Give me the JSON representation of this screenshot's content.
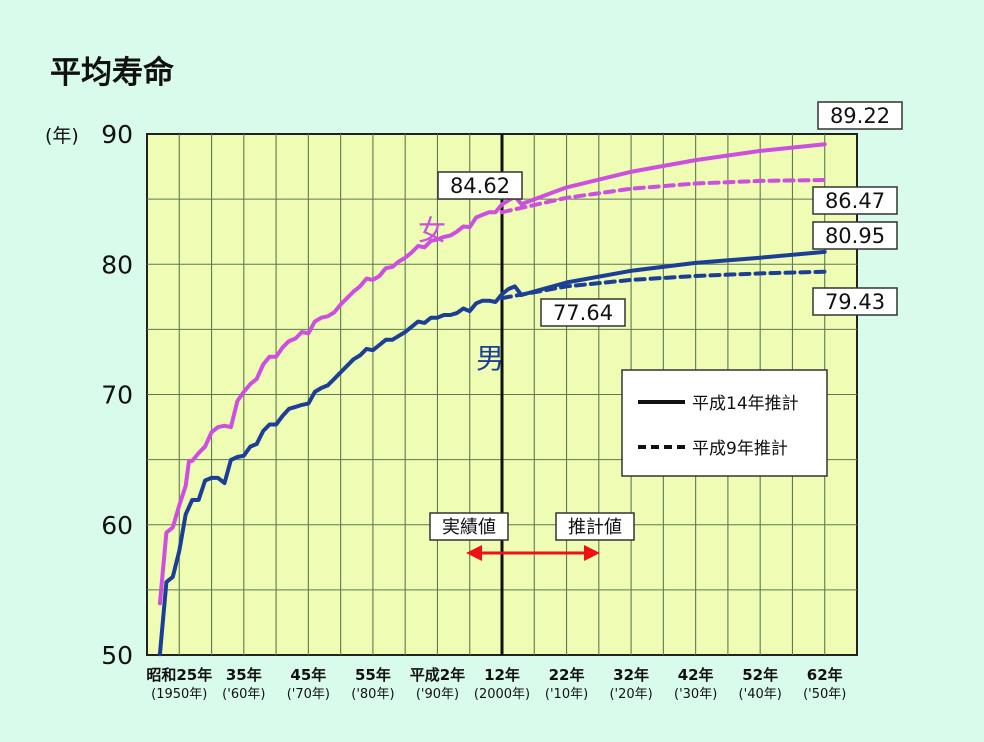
{
  "page": {
    "title": "平均寿命",
    "colors": {
      "background": "#d9fbec",
      "plot_area": "#eefcb4",
      "female": "#cc4fe0",
      "male": "#1c3f95",
      "arrow": "#ee1111"
    }
  },
  "chart_data": {
    "type": "line",
    "title": "平均寿命",
    "y_unit_label": "(年)",
    "ylim": [
      50,
      90
    ],
    "yticks": [
      50,
      60,
      70,
      80,
      90
    ],
    "xlim": [
      1945,
      2055
    ],
    "xticks": [
      {
        "x": 1950,
        "top": "昭和25年",
        "bottom": "(1950年)"
      },
      {
        "x": 1960,
        "top": "35年",
        "bottom": "('60年)"
      },
      {
        "x": 1970,
        "top": "45年",
        "bottom": "('70年)"
      },
      {
        "x": 1980,
        "top": "55年",
        "bottom": "('80年)"
      },
      {
        "x": 1990,
        "top": "平成2年",
        "bottom": "('90年)"
      },
      {
        "x": 2000,
        "top": "12年",
        "bottom": "(2000年)"
      },
      {
        "x": 2010,
        "top": "22年",
        "bottom": "('10年)"
      },
      {
        "x": 2020,
        "top": "32年",
        "bottom": "('20年)"
      },
      {
        "x": 2030,
        "top": "42年",
        "bottom": "('30年)"
      },
      {
        "x": 2040,
        "top": "52年",
        "bottom": "('40年)"
      },
      {
        "x": 2050,
        "top": "62年",
        "bottom": "('50年)"
      }
    ],
    "grid": true,
    "divider_x": 2000,
    "series": [
      {
        "name": "女",
        "kind": "actual",
        "color": "#cc4fe0",
        "points": [
          [
            1947,
            53.96
          ],
          [
            1948,
            59.4
          ],
          [
            1949,
            59.8
          ],
          [
            1950,
            61.5
          ],
          [
            1951,
            63.0
          ],
          [
            1951.5,
            64.9
          ],
          [
            1952,
            64.9
          ],
          [
            1953,
            65.5
          ],
          [
            1954,
            66.0
          ],
          [
            1955,
            67.1
          ],
          [
            1956,
            67.5
          ],
          [
            1957,
            67.6
          ],
          [
            1958,
            67.5
          ],
          [
            1959,
            69.5
          ],
          [
            1960,
            70.2
          ],
          [
            1961,
            70.8
          ],
          [
            1962,
            71.2
          ],
          [
            1963,
            72.3
          ],
          [
            1964,
            72.9
          ],
          [
            1965,
            72.9
          ],
          [
            1966,
            73.6
          ],
          [
            1967,
            74.1
          ],
          [
            1968,
            74.3
          ],
          [
            1969,
            74.8
          ],
          [
            1970,
            74.7
          ],
          [
            1971,
            75.6
          ],
          [
            1972,
            75.9
          ],
          [
            1973,
            76.0
          ],
          [
            1974,
            76.3
          ],
          [
            1975,
            76.9
          ],
          [
            1976,
            77.4
          ],
          [
            1977,
            77.9
          ],
          [
            1978,
            78.3
          ],
          [
            1979,
            78.9
          ],
          [
            1980,
            78.8
          ],
          [
            1981,
            79.1
          ],
          [
            1982,
            79.7
          ],
          [
            1983,
            79.8
          ],
          [
            1984,
            80.2
          ],
          [
            1985,
            80.5
          ],
          [
            1986,
            80.9
          ],
          [
            1987,
            81.4
          ],
          [
            1988,
            81.3
          ],
          [
            1989,
            81.8
          ],
          [
            1990,
            81.9
          ],
          [
            1991,
            82.1
          ],
          [
            1992,
            82.2
          ],
          [
            1993,
            82.5
          ],
          [
            1994,
            82.9
          ],
          [
            1995,
            82.85
          ],
          [
            1996,
            83.6
          ],
          [
            1997,
            83.8
          ],
          [
            1998,
            84.0
          ],
          [
            1999,
            83.99
          ],
          [
            2000,
            84.6
          ],
          [
            2001,
            84.9
          ],
          [
            2002,
            85.2
          ],
          [
            2003,
            84.62
          ]
        ]
      },
      {
        "name": "男",
        "kind": "actual",
        "color": "#1c3f95",
        "points": [
          [
            1947,
            50.06
          ],
          [
            1948,
            55.6
          ],
          [
            1949,
            56.0
          ],
          [
            1950,
            58.0
          ],
          [
            1951,
            60.8
          ],
          [
            1952,
            61.9
          ],
          [
            1953,
            61.9
          ],
          [
            1954,
            63.4
          ],
          [
            1955,
            63.6
          ],
          [
            1956,
            63.6
          ],
          [
            1957,
            63.2
          ],
          [
            1958,
            64.98
          ],
          [
            1959,
            65.2
          ],
          [
            1960,
            65.3
          ],
          [
            1961,
            66.0
          ],
          [
            1962,
            66.2
          ],
          [
            1963,
            67.2
          ],
          [
            1964,
            67.7
          ],
          [
            1965,
            67.7
          ],
          [
            1966,
            68.35
          ],
          [
            1967,
            68.9
          ],
          [
            1968,
            69.05
          ],
          [
            1969,
            69.2
          ],
          [
            1970,
            69.3
          ],
          [
            1971,
            70.2
          ],
          [
            1972,
            70.5
          ],
          [
            1973,
            70.7
          ],
          [
            1974,
            71.2
          ],
          [
            1975,
            71.7
          ],
          [
            1976,
            72.2
          ],
          [
            1977,
            72.7
          ],
          [
            1978,
            73.0
          ],
          [
            1979,
            73.5
          ],
          [
            1980,
            73.4
          ],
          [
            1981,
            73.8
          ],
          [
            1982,
            74.2
          ],
          [
            1983,
            74.2
          ],
          [
            1984,
            74.5
          ],
          [
            1985,
            74.8
          ],
          [
            1986,
            75.2
          ],
          [
            1987,
            75.6
          ],
          [
            1988,
            75.5
          ],
          [
            1989,
            75.9
          ],
          [
            1990,
            75.9
          ],
          [
            1991,
            76.1
          ],
          [
            1992,
            76.1
          ],
          [
            1993,
            76.25
          ],
          [
            1994,
            76.6
          ],
          [
            1995,
            76.4
          ],
          [
            1996,
            77.0
          ],
          [
            1997,
            77.2
          ],
          [
            1998,
            77.2
          ],
          [
            1999,
            77.1
          ],
          [
            2000,
            77.7
          ],
          [
            2001,
            78.1
          ],
          [
            2002,
            78.3
          ],
          [
            2003,
            77.64
          ]
        ]
      },
      {
        "name": "平成14年推計",
        "kind": "projection",
        "gender": "female",
        "style": "solid",
        "color": "#cc4fe0",
        "points": [
          [
            2003,
            84.62
          ],
          [
            2010,
            85.9
          ],
          [
            2020,
            87.1
          ],
          [
            2030,
            88.0
          ],
          [
            2040,
            88.7
          ],
          [
            2050,
            89.22
          ]
        ]
      },
      {
        "name": "平成14年推計",
        "kind": "projection",
        "gender": "male",
        "style": "solid",
        "color": "#1c3f95",
        "points": [
          [
            2003,
            77.64
          ],
          [
            2010,
            78.6
          ],
          [
            2020,
            79.5
          ],
          [
            2030,
            80.1
          ],
          [
            2040,
            80.5
          ],
          [
            2050,
            80.95
          ]
        ]
      },
      {
        "name": "平成9年推計",
        "kind": "projection",
        "gender": "female",
        "style": "dashed",
        "color": "#cc4fe0",
        "points": [
          [
            2000,
            84.0
          ],
          [
            2010,
            85.1
          ],
          [
            2020,
            85.8
          ],
          [
            2030,
            86.2
          ],
          [
            2040,
            86.4
          ],
          [
            2050,
            86.47
          ]
        ]
      },
      {
        "name": "平成9年推計",
        "kind": "projection",
        "gender": "male",
        "style": "dashed",
        "color": "#1c3f95",
        "points": [
          [
            2000,
            77.4
          ],
          [
            2010,
            78.3
          ],
          [
            2020,
            78.8
          ],
          [
            2030,
            79.1
          ],
          [
            2040,
            79.3
          ],
          [
            2050,
            79.43
          ]
        ]
      }
    ],
    "value_labels": [
      {
        "text": "89.22",
        "x": 2050,
        "y": 89.22
      },
      {
        "text": "84.62",
        "x": 2003,
        "y": 84.62
      },
      {
        "text": "86.47",
        "x": 2050,
        "y": 86.47
      },
      {
        "text": "80.95",
        "x": 2050,
        "y": 80.95
      },
      {
        "text": "77.64",
        "x": 2003,
        "y": 77.64
      },
      {
        "text": "79.43",
        "x": 2050,
        "y": 79.43
      }
    ],
    "series_labels": {
      "female": "女",
      "male": "男"
    },
    "legend": {
      "position": "right-middle",
      "items": [
        {
          "label": "平成14年推計",
          "style": "solid"
        },
        {
          "label": "平成9年推計",
          "style": "dashed"
        }
      ]
    },
    "annotations": {
      "actual_label": "実績値",
      "estimate_label": "推計値"
    }
  }
}
